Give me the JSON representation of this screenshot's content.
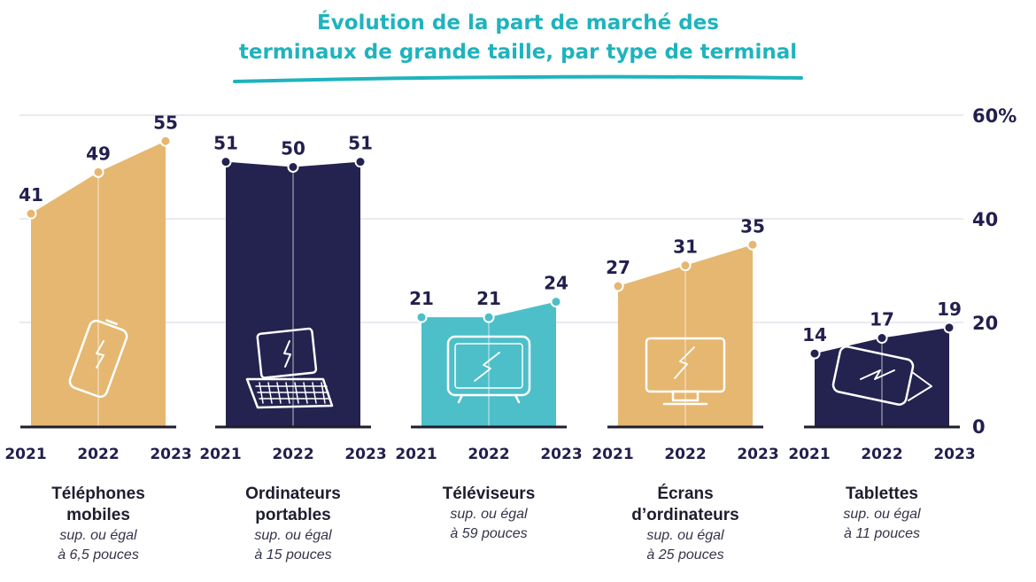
{
  "chart_data": {
    "type": "area",
    "title_lines": [
      "Évolution de la part de marché des",
      "terminaux de grande taille, par type de terminal"
    ],
    "y_axis": {
      "ticks": [
        "0",
        "20",
        "40",
        "60%"
      ],
      "ylim": [
        0,
        60
      ]
    },
    "years": [
      "2021",
      "2022",
      "2023"
    ],
    "colors": {
      "gold": "#e5b770",
      "navy": "#24224f",
      "teal": "#4dbfc9",
      "title": "#1fb3bd"
    },
    "series": [
      {
        "name": "Téléphones mobiles",
        "name_lines": [
          "Téléphones",
          "mobiles"
        ],
        "sub_lines": [
          "sup. ou égal",
          "à 6,5 pouces"
        ],
        "values": [
          41,
          49,
          55
        ],
        "color": "gold",
        "icon": "smartphone-icon"
      },
      {
        "name": "Ordinateurs portables",
        "name_lines": [
          "Ordinateurs",
          "portables"
        ],
        "sub_lines": [
          "sup. ou égal",
          "à 15 pouces"
        ],
        "values": [
          51,
          50,
          51
        ],
        "color": "navy",
        "icon": "laptop-icon"
      },
      {
        "name": "Téléviseurs",
        "name_lines": [
          "Téléviseurs"
        ],
        "sub_lines": [
          "sup. ou égal",
          "à 59 pouces"
        ],
        "values": [
          21,
          21,
          24
        ],
        "color": "teal",
        "icon": "tv-icon"
      },
      {
        "name": "Écrans d’ordinateurs",
        "name_lines": [
          "Écrans",
          "d’ordinateurs"
        ],
        "sub_lines": [
          "sup. ou égal",
          "à 25 pouces"
        ],
        "values": [
          27,
          31,
          35
        ],
        "color": "gold",
        "icon": "monitor-icon"
      },
      {
        "name": "Tablettes",
        "name_lines": [
          "Tablettes"
        ],
        "sub_lines": [
          "sup. ou égal",
          "à 11 pouces"
        ],
        "values": [
          14,
          17,
          19
        ],
        "color": "navy",
        "icon": "tablet-icon"
      }
    ]
  }
}
